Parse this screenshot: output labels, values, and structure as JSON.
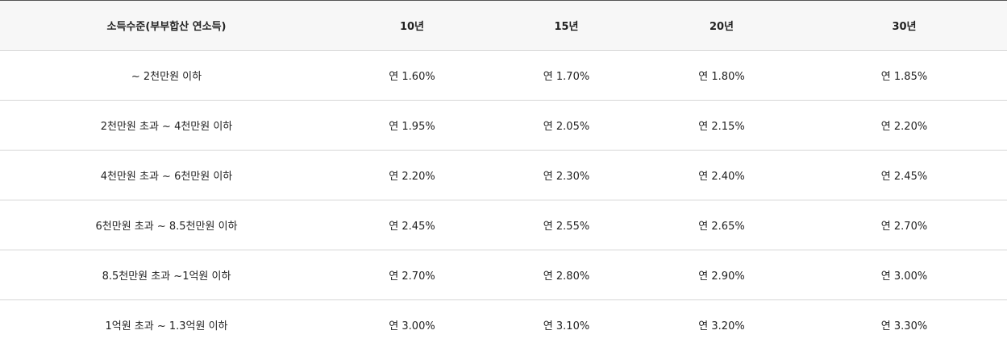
{
  "table": {
    "headers": [
      "소득수준(부부합산 연소득)",
      "10년",
      "15년",
      "20년",
      "30년"
    ],
    "rows": [
      [
        "~ 2천만원 이하",
        "연 1.60%",
        "연 1.70%",
        "연 1.80%",
        "연 1.85%"
      ],
      [
        "2천만원 초과 ~ 4천만원 이하",
        "연 1.95%",
        "연 2.05%",
        "연 2.15%",
        "연 2.20%"
      ],
      [
        "4천만원 초과 ~ 6천만원 이하",
        "연 2.20%",
        "연 2.30%",
        "연 2.40%",
        "연 2.45%"
      ],
      [
        "6천만원 초과 ~ 8.5천만원 이하",
        "연 2.45%",
        "연 2.55%",
        "연 2.65%",
        "연 2.70%"
      ],
      [
        "8.5천만원 초과 ~1억원 이하",
        "연 2.70%",
        "연 2.80%",
        "연 2.90%",
        "연 3.00%"
      ],
      [
        "1억원 초과 ~ 1.3억원 이하",
        "연 3.00%",
        "연 3.10%",
        "연 3.20%",
        "연 3.30%"
      ]
    ]
  }
}
